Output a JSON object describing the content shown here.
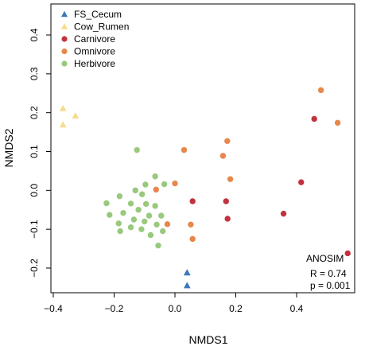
{
  "chart_data": {
    "type": "scatter",
    "xlabel": "NMDS1",
    "ylabel": "NMDS2",
    "xlim": [
      -0.4,
      0.6
    ],
    "ylim": [
      -0.25,
      0.45
    ],
    "xticks": [
      -0.4,
      -0.2,
      0.0,
      0.2,
      0.4
    ],
    "yticks": [
      -0.2,
      -0.1,
      0.0,
      0.1,
      0.2,
      0.3,
      0.4
    ],
    "xtick_labels": [
      "−0.4",
      "−0.2",
      "0.0",
      "0.2",
      "0.4"
    ],
    "ytick_labels": [
      "−0.2",
      "−0.1",
      "0.0",
      "0.1",
      "0.2",
      "0.3",
      "0.4"
    ],
    "grid": false,
    "legend_position": "top-left",
    "series": [
      {
        "name": "FS_Cecum",
        "marker": "triangle",
        "color": "#3d78b8",
        "points": [
          [
            0.04,
            -0.212
          ],
          [
            0.04,
            -0.245
          ]
        ]
      },
      {
        "name": "Cow_Rumen",
        "marker": "triangle",
        "color": "#f5dd8e",
        "points": [
          [
            -0.368,
            0.211
          ],
          [
            -0.368,
            0.169
          ],
          [
            -0.327,
            0.192
          ]
        ]
      },
      {
        "name": "Carnivore",
        "marker": "circle",
        "color": "#c2323f",
        "points": [
          [
            0.568,
            -0.162
          ],
          [
            0.458,
            0.184
          ],
          [
            0.415,
            0.021
          ],
          [
            0.357,
            -0.06
          ],
          [
            0.173,
            -0.073
          ],
          [
            0.168,
            -0.028
          ],
          [
            0.058,
            -0.028
          ]
        ]
      },
      {
        "name": "Omnivore",
        "marker": "circle",
        "color": "#e8864c",
        "points": [
          [
            0.48,
            0.258
          ],
          [
            0.535,
            0.174
          ],
          [
            0.172,
            0.127
          ],
          [
            0.158,
            0.089
          ],
          [
            0.182,
            0.029
          ],
          [
            0.03,
            0.104
          ],
          [
            0.0,
            0.018
          ],
          [
            -0.062,
            0.002
          ],
          [
            0.052,
            -0.088
          ],
          [
            -0.025,
            -0.087
          ],
          [
            0.058,
            -0.125
          ]
        ]
      },
      {
        "name": "Herbivore",
        "marker": "circle",
        "color": "#98c97c",
        "points": [
          [
            -0.125,
            0.104
          ],
          [
            -0.065,
            0.036
          ],
          [
            -0.097,
            0.015
          ],
          [
            -0.035,
            0.016
          ],
          [
            -0.13,
            0.0
          ],
          [
            -0.108,
            -0.01
          ],
          [
            -0.182,
            -0.015
          ],
          [
            -0.225,
            -0.033
          ],
          [
            -0.145,
            -0.034
          ],
          [
            -0.095,
            -0.035
          ],
          [
            -0.065,
            -0.04
          ],
          [
            -0.12,
            -0.05
          ],
          [
            -0.215,
            -0.063
          ],
          [
            -0.17,
            -0.058
          ],
          [
            -0.085,
            -0.065
          ],
          [
            -0.045,
            -0.065
          ],
          [
            -0.135,
            -0.075
          ],
          [
            -0.1,
            -0.08
          ],
          [
            -0.185,
            -0.085
          ],
          [
            -0.06,
            -0.088
          ],
          [
            -0.145,
            -0.095
          ],
          [
            -0.18,
            -0.105
          ],
          [
            -0.11,
            -0.1
          ],
          [
            -0.08,
            -0.115
          ],
          [
            -0.04,
            -0.105
          ],
          [
            -0.055,
            -0.142
          ]
        ]
      }
    ],
    "annotation": {
      "title": "ANOSIM",
      "r_text": "R = 0.74",
      "p_text": "p = 0.001"
    }
  }
}
